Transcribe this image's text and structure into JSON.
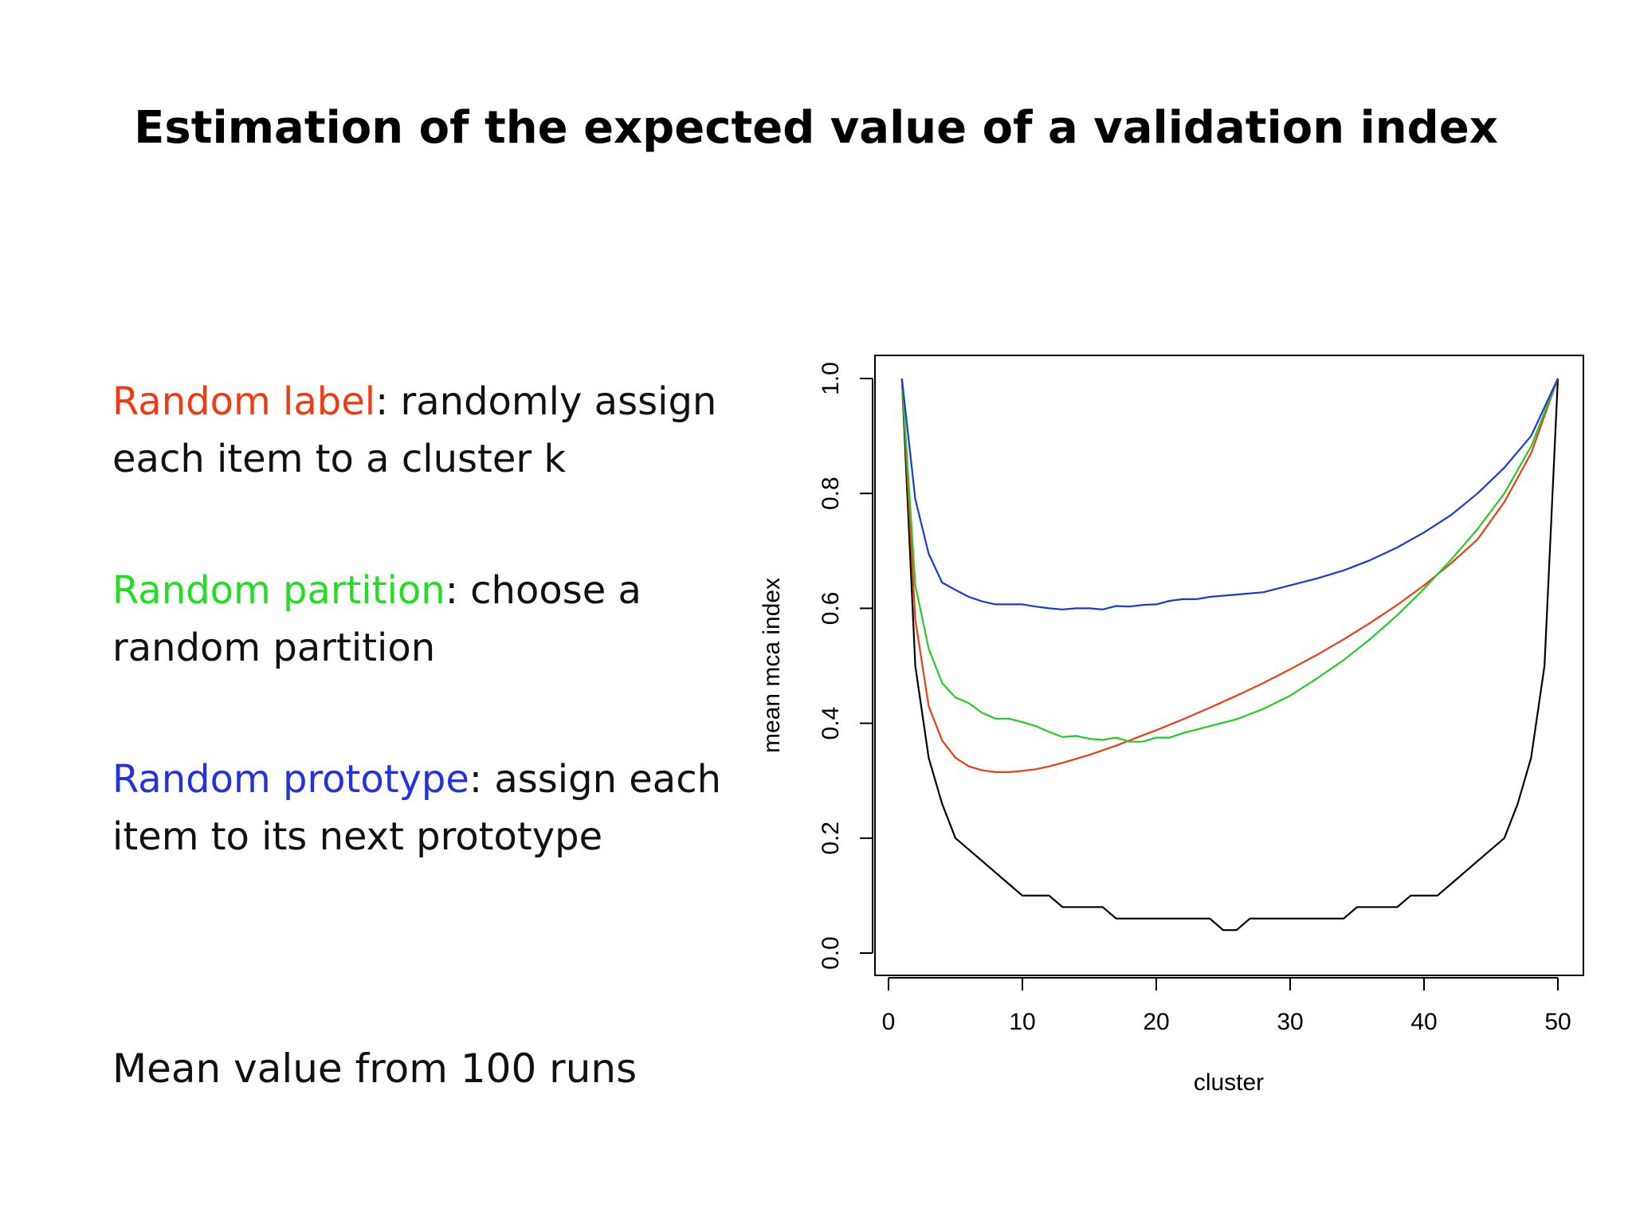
{
  "slide": {
    "title": "Estimation of the expected value of a validation index",
    "bullets": [
      {
        "term": "Random label",
        "term_color": "#ee3b12",
        "sep": ": ",
        "text": "randomly assign each item to a cluster k"
      },
      {
        "term": "Random partition",
        "term_color": "#22dd22",
        "sep": ": ",
        "text": "choose a random partition"
      },
      {
        "term": "Random prototype",
        "term_color": "#2233dd",
        "sep": ": ",
        "text": "assign each item to its next prototype"
      }
    ],
    "footer": "Mean value from 100 runs"
  },
  "chart_data": {
    "type": "line",
    "title": "",
    "xlabel": "cluster",
    "ylabel": "mean mca index",
    "xlim": [
      0,
      50
    ],
    "ylim": [
      0,
      1
    ],
    "xticks": [
      "0",
      "10",
      "20",
      "30",
      "40",
      "50"
    ],
    "yticks": [
      "0.0",
      "0.2",
      "0.4",
      "0.6",
      "0.8",
      "1.0"
    ],
    "grid": false,
    "legend": "none",
    "series": [
      {
        "color": "#000000",
        "points": [
          [
            1,
            1.0
          ],
          [
            2,
            0.5
          ],
          [
            3,
            0.34
          ],
          [
            4,
            0.26
          ],
          [
            5,
            0.2
          ],
          [
            6,
            0.18
          ],
          [
            7,
            0.16
          ],
          [
            8,
            0.14
          ],
          [
            9,
            0.12
          ],
          [
            10,
            0.1
          ],
          [
            11,
            0.1
          ],
          [
            12,
            0.1
          ],
          [
            13,
            0.08
          ],
          [
            14,
            0.08
          ],
          [
            15,
            0.08
          ],
          [
            16,
            0.08
          ],
          [
            17,
            0.06
          ],
          [
            18,
            0.06
          ],
          [
            19,
            0.06
          ],
          [
            20,
            0.06
          ],
          [
            21,
            0.06
          ],
          [
            22,
            0.06
          ],
          [
            23,
            0.06
          ],
          [
            24,
            0.06
          ],
          [
            25,
            0.04
          ],
          [
            26,
            0.04
          ],
          [
            27,
            0.06
          ],
          [
            28,
            0.06
          ],
          [
            29,
            0.06
          ],
          [
            30,
            0.06
          ],
          [
            31,
            0.06
          ],
          [
            32,
            0.06
          ],
          [
            33,
            0.06
          ],
          [
            34,
            0.06
          ],
          [
            35,
            0.08
          ],
          [
            36,
            0.08
          ],
          [
            37,
            0.08
          ],
          [
            38,
            0.08
          ],
          [
            39,
            0.1
          ],
          [
            40,
            0.1
          ],
          [
            41,
            0.1
          ],
          [
            42,
            0.12
          ],
          [
            43,
            0.14
          ],
          [
            44,
            0.16
          ],
          [
            45,
            0.18
          ],
          [
            46,
            0.2
          ],
          [
            47,
            0.26
          ],
          [
            48,
            0.34
          ],
          [
            49,
            0.5
          ],
          [
            50,
            1.0
          ]
        ]
      },
      {
        "color": "#ee3b12",
        "points": [
          [
            1,
            1.0
          ],
          [
            2,
            0.58
          ],
          [
            3,
            0.43
          ],
          [
            4,
            0.37
          ],
          [
            5,
            0.34
          ],
          [
            6,
            0.325
          ],
          [
            7,
            0.318
          ],
          [
            8,
            0.315
          ],
          [
            9,
            0.315
          ],
          [
            10,
            0.317
          ],
          [
            11,
            0.32
          ],
          [
            12,
            0.325
          ],
          [
            13,
            0.331
          ],
          [
            14,
            0.338
          ],
          [
            15,
            0.345
          ],
          [
            16,
            0.353
          ],
          [
            17,
            0.361
          ],
          [
            18,
            0.37
          ],
          [
            19,
            0.379
          ],
          [
            20,
            0.388
          ],
          [
            22,
            0.407
          ],
          [
            24,
            0.427
          ],
          [
            26,
            0.448
          ],
          [
            28,
            0.47
          ],
          [
            30,
            0.494
          ],
          [
            32,
            0.519
          ],
          [
            34,
            0.546
          ],
          [
            36,
            0.575
          ],
          [
            38,
            0.606
          ],
          [
            40,
            0.64
          ],
          [
            42,
            0.678
          ],
          [
            44,
            0.72
          ],
          [
            46,
            0.785
          ],
          [
            48,
            0.87
          ],
          [
            50,
            1.0
          ]
        ]
      },
      {
        "color": "#22cc22",
        "points": [
          [
            1,
            1.0
          ],
          [
            2,
            0.64
          ],
          [
            3,
            0.53
          ],
          [
            4,
            0.47
          ],
          [
            5,
            0.445
          ],
          [
            6,
            0.435
          ],
          [
            7,
            0.418
          ],
          [
            8,
            0.408
          ],
          [
            9,
            0.408
          ],
          [
            10,
            0.402
          ],
          [
            11,
            0.395
          ],
          [
            12,
            0.385
          ],
          [
            13,
            0.376
          ],
          [
            14,
            0.378
          ],
          [
            15,
            0.373
          ],
          [
            16,
            0.371
          ],
          [
            17,
            0.375
          ],
          [
            18,
            0.368
          ],
          [
            19,
            0.368
          ],
          [
            20,
            0.375
          ],
          [
            21,
            0.375
          ],
          [
            22,
            0.383
          ],
          [
            24,
            0.395
          ],
          [
            26,
            0.407
          ],
          [
            28,
            0.425
          ],
          [
            30,
            0.448
          ],
          [
            32,
            0.478
          ],
          [
            34,
            0.51
          ],
          [
            36,
            0.547
          ],
          [
            38,
            0.588
          ],
          [
            40,
            0.634
          ],
          [
            42,
            0.684
          ],
          [
            44,
            0.738
          ],
          [
            46,
            0.8
          ],
          [
            48,
            0.882
          ],
          [
            50,
            1.0
          ]
        ]
      },
      {
        "color": "#1a3ad6",
        "points": [
          [
            1,
            1.0
          ],
          [
            2,
            0.79
          ],
          [
            3,
            0.695
          ],
          [
            4,
            0.645
          ],
          [
            5,
            0.632
          ],
          [
            6,
            0.62
          ],
          [
            7,
            0.612
          ],
          [
            8,
            0.607
          ],
          [
            9,
            0.607
          ],
          [
            10,
            0.607
          ],
          [
            11,
            0.603
          ],
          [
            12,
            0.6
          ],
          [
            13,
            0.598
          ],
          [
            14,
            0.6
          ],
          [
            15,
            0.6
          ],
          [
            16,
            0.598
          ],
          [
            17,
            0.604
          ],
          [
            18,
            0.603
          ],
          [
            19,
            0.606
          ],
          [
            20,
            0.607
          ],
          [
            21,
            0.613
          ],
          [
            22,
            0.616
          ],
          [
            23,
            0.616
          ],
          [
            24,
            0.62
          ],
          [
            26,
            0.624
          ],
          [
            28,
            0.628
          ],
          [
            30,
            0.64
          ],
          [
            32,
            0.652
          ],
          [
            34,
            0.666
          ],
          [
            36,
            0.684
          ],
          [
            38,
            0.706
          ],
          [
            40,
            0.732
          ],
          [
            42,
            0.762
          ],
          [
            44,
            0.8
          ],
          [
            46,
            0.845
          ],
          [
            48,
            0.9
          ],
          [
            50,
            1.0
          ]
        ]
      }
    ]
  }
}
